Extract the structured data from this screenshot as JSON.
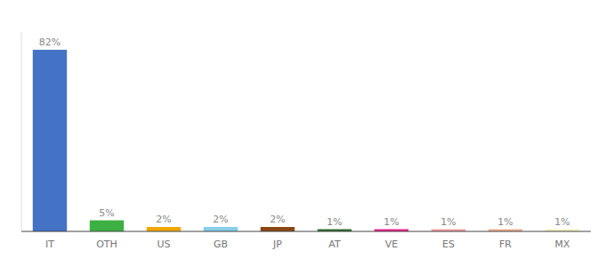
{
  "chart_data": {
    "type": "bar",
    "categories": [
      "IT",
      "OTH",
      "US",
      "GB",
      "JP",
      "AT",
      "VE",
      "ES",
      "FR",
      "MX"
    ],
    "values": [
      82,
      5,
      2,
      2,
      2,
      1,
      1,
      1,
      1,
      1
    ],
    "value_labels": [
      "82%",
      "5%",
      "2%",
      "2%",
      "2%",
      "1%",
      "1%",
      "1%",
      "1%",
      "1%"
    ],
    "colors": [
      "#4472c4",
      "#3cb043",
      "#f0a500",
      "#87ceeb",
      "#8b4513",
      "#2d6a2d",
      "#e91e8c",
      "#f4a0a0",
      "#f0b090",
      "#f5f0c0"
    ],
    "ylim": [
      0,
      90
    ],
    "grid": false,
    "data_labels": true,
    "tick_labels": "x"
  }
}
